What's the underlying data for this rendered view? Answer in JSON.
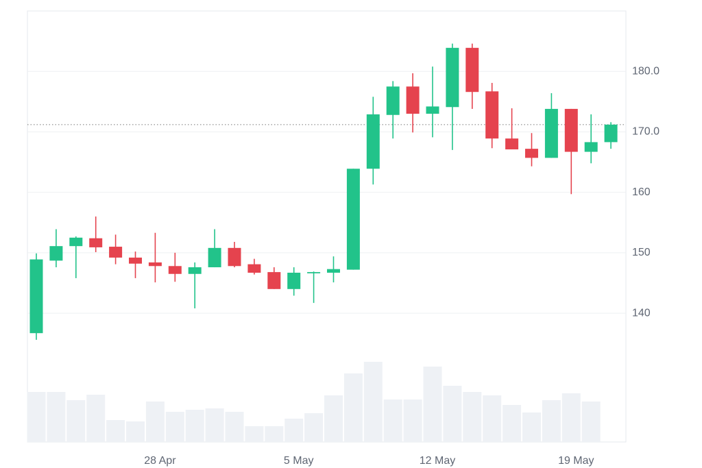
{
  "chart_data": {
    "type": "candlestick",
    "categories": [
      null,
      null,
      null,
      null,
      null,
      null,
      "28 Apr",
      null,
      null,
      null,
      null,
      null,
      null,
      "5 May",
      null,
      null,
      null,
      null,
      null,
      null,
      "12 May",
      null,
      null,
      null,
      null,
      null,
      null,
      "19 May",
      null,
      null
    ],
    "open": [
      136.7,
      148.7,
      151.1,
      152.4,
      151.0,
      149.2,
      148.4,
      147.8,
      146.5,
      147.6,
      150.8,
      148.1,
      146.8,
      144.0,
      146.6,
      146.7,
      147.2,
      163.9,
      172.8,
      177.5,
      173.0,
      174.1,
      183.9,
      176.7,
      168.9,
      167.2,
      165.7,
      173.8,
      166.7,
      168.3
    ],
    "high": [
      149.9,
      153.9,
      152.7,
      156.0,
      153.0,
      150.2,
      153.3,
      150.0,
      148.4,
      153.9,
      151.8,
      149.0,
      147.6,
      147.6,
      146.9,
      149.4,
      163.9,
      175.8,
      178.4,
      179.7,
      180.8,
      184.6,
      184.6,
      178.1,
      173.9,
      169.8,
      176.4,
      173.8,
      172.9,
      171.6
    ],
    "low": [
      135.6,
      147.6,
      145.8,
      150.1,
      148.1,
      145.8,
      145.1,
      145.2,
      140.8,
      147.6,
      147.6,
      146.4,
      144.0,
      142.9,
      141.7,
      145.1,
      147.2,
      161.3,
      168.9,
      169.9,
      169.1,
      167.0,
      173.8,
      167.3,
      167.1,
      164.3,
      165.7,
      159.7,
      164.8,
      167.2
    ],
    "close": [
      148.9,
      151.1,
      152.5,
      150.9,
      149.2,
      148.2,
      147.8,
      146.5,
      147.6,
      150.8,
      147.8,
      146.7,
      144.0,
      146.7,
      146.8,
      147.3,
      163.9,
      172.9,
      177.5,
      173.0,
      174.2,
      183.9,
      176.6,
      168.9,
      167.1,
      165.7,
      173.8,
      166.7,
      168.3,
      171.2
    ],
    "volume": [
      73,
      73,
      61,
      69,
      32,
      30,
      59,
      44,
      47,
      49,
      44,
      23,
      23,
      34,
      42,
      68,
      100,
      117,
      62,
      62,
      110,
      82,
      73,
      68,
      54,
      43,
      61,
      71,
      59,
      null
    ],
    "up_color": "#22c38a",
    "down_color": "#e5434e",
    "volume_color": "#eef1f5",
    "ylim": [
      118.7,
      190
    ],
    "yticks": [
      {
        "value": 180,
        "label": "180.0"
      },
      {
        "value": 170,
        "label": "170.0"
      },
      160,
      150,
      140
    ],
    "y2lim": [
      0,
      629
    ],
    "grid": true
  }
}
